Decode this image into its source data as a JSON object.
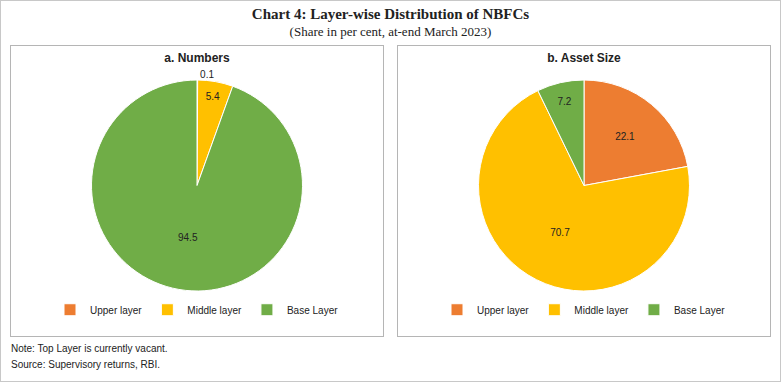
{
  "title": "Chart 4: Layer-wise Distribution of NBFCs",
  "subtitle": "(Share in per cent, at-end March 2023)",
  "note": "Note: Top Layer is currently vacant.",
  "source": "Source: Supervisory returns, RBI.",
  "chart_data": [
    {
      "type": "pie",
      "title": "a. Numbers",
      "categories": [
        "Upper layer",
        "Middle layer",
        "Base Layer"
      ],
      "values": [
        0.1,
        5.4,
        94.5
      ],
      "colors": [
        "#ed7d31",
        "#ffc000",
        "#70ad47"
      ],
      "data_labels": true,
      "legend": "bottom"
    },
    {
      "type": "pie",
      "title": "b. Asset Size",
      "categories": [
        "Upper layer",
        "Middle layer",
        "Base Layer"
      ],
      "values": [
        22.1,
        70.7,
        7.2
      ],
      "colors": [
        "#ed7d31",
        "#ffc000",
        "#70ad47"
      ],
      "data_labels": true,
      "legend": "bottom"
    }
  ]
}
